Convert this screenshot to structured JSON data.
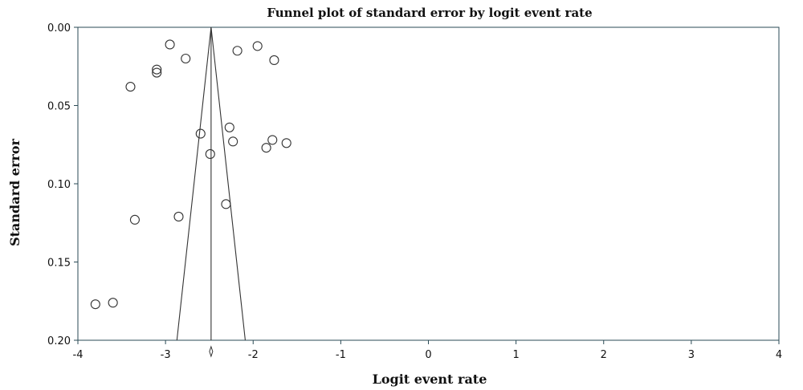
{
  "chart_data": {
    "type": "scatter",
    "title": "Funnel plot of standard error by logit event rate",
    "xlabel": "Logit event rate",
    "ylabel": "Standard error",
    "xlim": [
      -4,
      4
    ],
    "ylim": [
      0.0,
      0.2
    ],
    "y_inverted": true,
    "x_ticks": [
      -4,
      -3,
      -2,
      -1,
      0,
      1,
      2,
      3,
      4
    ],
    "x_tick_labels": [
      "-4",
      "-3",
      "-2",
      "-1",
      "0",
      "1",
      "2",
      "3",
      "4"
    ],
    "y_ticks": [
      0.0,
      0.05,
      0.1,
      0.15,
      0.2
    ],
    "y_tick_labels": [
      "0.00",
      "0.05",
      "0.10",
      "0.15",
      "0.20"
    ],
    "grid": false,
    "pooled_estimate": -2.48,
    "funnel_limits_at_se_0_2": [
      -2.87,
      -2.09
    ],
    "series": [
      {
        "points": [
          {
            "x": -2.95,
            "y": 0.011
          },
          {
            "x": -1.95,
            "y": 0.012
          },
          {
            "x": -2.18,
            "y": 0.015
          },
          {
            "x": -2.77,
            "y": 0.02
          },
          {
            "x": -1.76,
            "y": 0.021
          },
          {
            "x": -3.1,
            "y": 0.027
          },
          {
            "x": -3.1,
            "y": 0.029
          },
          {
            "x": -3.4,
            "y": 0.038
          },
          {
            "x": -2.27,
            "y": 0.064
          },
          {
            "x": -2.6,
            "y": 0.068
          },
          {
            "x": -2.23,
            "y": 0.073
          },
          {
            "x": -1.78,
            "y": 0.072
          },
          {
            "x": -1.62,
            "y": 0.074
          },
          {
            "x": -1.85,
            "y": 0.077
          },
          {
            "x": -2.49,
            "y": 0.081
          },
          {
            "x": -2.31,
            "y": 0.113
          },
          {
            "x": -2.85,
            "y": 0.121
          },
          {
            "x": -3.35,
            "y": 0.123
          },
          {
            "x": -3.6,
            "y": 0.176
          },
          {
            "x": -3.8,
            "y": 0.177
          }
        ]
      }
    ]
  }
}
